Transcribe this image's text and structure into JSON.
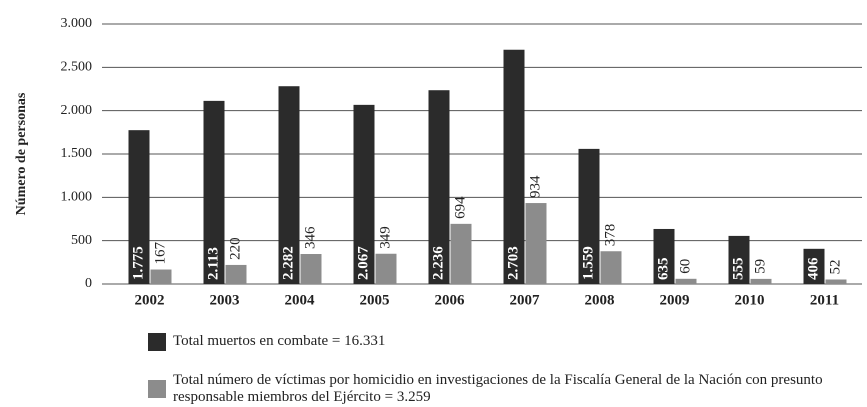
{
  "chart_data": {
    "type": "bar",
    "y_label": "Número de personas",
    "categories": [
      "2002",
      "2003",
      "2004",
      "2005",
      "2006",
      "2007",
      "2008",
      "2009",
      "2010",
      "2011"
    ],
    "series": [
      {
        "name": "Total muertos en combate = 16.331",
        "color": "#2b2b2b",
        "values": [
          1775,
          2113,
          2282,
          2067,
          2236,
          2703,
          1559,
          635,
          555,
          406
        ],
        "value_labels": [
          "1.775",
          "2.113",
          "2.282",
          "2.067",
          "2.236",
          "2.703",
          "1.559",
          "635",
          "555",
          "406"
        ]
      },
      {
        "name": "Total número de víctimas por homicidio en investigaciones de la Fiscalía General de la Nación con presunto responsable miembros del Ejército = 3.259",
        "color": "#8c8c8c",
        "values": [
          167,
          220,
          346,
          349,
          694,
          934,
          378,
          60,
          59,
          52
        ]
      }
    ],
    "ylim": [
      0,
      3000
    ],
    "yticks": [
      0,
      {
        "value": 500,
        "label": "500"
      },
      {
        "value": 1000,
        "label": "1.000"
      },
      {
        "value": 1500,
        "label": "1.500"
      },
      {
        "value": 2000,
        "label": "2.000"
      },
      {
        "value": 2500,
        "label": "2.500"
      },
      {
        "value": 3000,
        "label": "3.000"
      }
    ],
    "grid": true
  }
}
